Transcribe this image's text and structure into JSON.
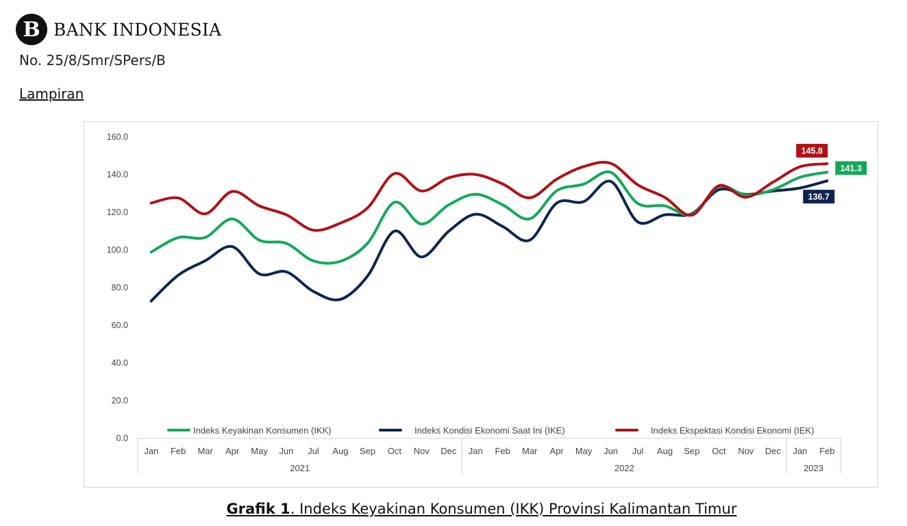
{
  "header": {
    "logo_text": "BANK INDONESIA",
    "logo_mark_letter": "B",
    "document_number": "No. 25/8/Smr/SPers/B",
    "section_title": "Lampiran"
  },
  "caption": {
    "prefix": "Grafik 1",
    "text": ". Indeks Keyakinan Konsumen (IKK) Provinsi Kalimantan Timur"
  },
  "colors": {
    "ikk": "#14a85a",
    "ike": "#0d2550",
    "iek": "#b01116",
    "grid_axis": "#cfcfcf",
    "tick_text": "#444444"
  },
  "chart_data": {
    "type": "line",
    "title": "",
    "ylim": [
      0,
      160
    ],
    "y_ticks": [
      "0.0",
      "20.0",
      "40.0",
      "60.0",
      "80.0",
      "100.0",
      "120.0",
      "140.0",
      "160.0"
    ],
    "categories": [
      "Jan",
      "Feb",
      "Mar",
      "Apr",
      "May",
      "Jun",
      "Jul",
      "Aug",
      "Sep",
      "Oct",
      "Nov",
      "Dec",
      "Jan",
      "Feb",
      "Mar",
      "Apr",
      "May",
      "Jun",
      "Jul",
      "Aug",
      "Sep",
      "Oct",
      "Nov",
      "Dec",
      "Jan",
      "Feb"
    ],
    "year_groups": [
      {
        "label": "2021",
        "count": 12
      },
      {
        "label": "2022",
        "count": 12
      },
      {
        "label": "2023",
        "count": 2
      }
    ],
    "legend_position": "bottom",
    "grid": false,
    "series": [
      {
        "name": "Indeks Keyakinan Konsumen (IKK)",
        "key": "ikk",
        "values": [
          98.9,
          106.6,
          106.7,
          116.5,
          105.2,
          103.5,
          94.2,
          94.0,
          103.5,
          125.3,
          113.8,
          123.9,
          129.6,
          124.0,
          116.5,
          131.4,
          135.0,
          141.2,
          124.7,
          123.4,
          118.9,
          133.6,
          129.2,
          132.0,
          138.6,
          141.3
        ],
        "end_label": "141.3"
      },
      {
        "name": "Indeks Kondisi Ekonomi Saat Ini (IKE)",
        "key": "ike",
        "values": [
          72.9,
          86.6,
          94.3,
          101.8,
          87.3,
          88.4,
          78.0,
          73.8,
          86.1,
          110.0,
          96.3,
          109.9,
          119.0,
          112.5,
          105.2,
          124.9,
          125.7,
          136.4,
          114.9,
          118.7,
          119.3,
          132.0,
          129.5,
          131.3,
          132.9,
          136.7
        ],
        "end_label": "136.7"
      },
      {
        "name": "Indeks Ekspektasi Kondisi Ekonomi (IEK)",
        "key": "iek",
        "values": [
          124.9,
          127.6,
          119.2,
          131.1,
          123.4,
          118.7,
          110.5,
          114.3,
          122.3,
          140.6,
          131.3,
          138.3,
          140.1,
          135.1,
          127.7,
          137.6,
          144.3,
          146.0,
          134.6,
          127.9,
          118.5,
          134.1,
          128.0,
          136.0,
          144.2,
          145.8
        ],
        "end_label": "145.8"
      }
    ]
  }
}
